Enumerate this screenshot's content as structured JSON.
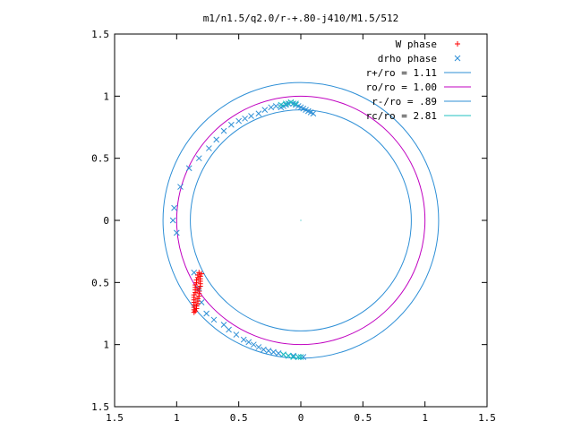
{
  "chart_data": {
    "type": "scatter",
    "title": "m1/n1.5/q2.0/r-+.80-j410/M1.5/512",
    "xlim": [
      -1.5,
      1.5
    ],
    "ylim": [
      -1.5,
      1.5
    ],
    "x_ticks": [
      -1.5,
      -1,
      -0.5,
      0,
      0.5,
      1,
      1.5
    ],
    "x_tick_labels": [
      "1.5",
      "1",
      "0.5",
      "0",
      "0.5",
      "1",
      "1.5"
    ],
    "y_ticks": [
      1.5,
      1,
      0.5,
      0,
      -0.5,
      -1,
      -1.5
    ],
    "y_tick_labels": [
      "1.5",
      "1",
      "0.5",
      "0",
      "0.5",
      "1",
      "1.5"
    ],
    "grid": false,
    "legend_position": "top-right",
    "legend": [
      {
        "label": "W phase",
        "color": "#ff0000",
        "marker": "+"
      },
      {
        "label": "drho phase",
        "color": "#2e8fd6",
        "marker": "x"
      },
      {
        "label": "r+/ro = 1.11",
        "color": "#2e8fd6",
        "marker": "line"
      },
      {
        "label": "ro/ro = 1.00",
        "color": "#c000c0",
        "marker": "line"
      },
      {
        "label": "r-/ro = .89",
        "color": "#2e8fd6",
        "marker": "line"
      },
      {
        "label": "rc/ro = 2.81",
        "color": "#20c0c0",
        "marker": "line"
      }
    ],
    "circles": [
      {
        "name": "r+/ro = 1.11",
        "radius": 1.11,
        "color": "#2e8fd6"
      },
      {
        "name": "ro/ro = 1.00",
        "radius": 1.0,
        "color": "#c000c0"
      },
      {
        "name": "r-/ro = .89",
        "radius": 0.89,
        "color": "#2e8fd6"
      },
      {
        "name": "rc/ro = 2.81",
        "radius": 2.81,
        "color": "#20c0c0"
      }
    ],
    "series": [
      {
        "name": "W phase",
        "color": "#ff0000",
        "marker": "+",
        "points": [
          [
            -0.82,
            -0.42
          ],
          [
            -0.83,
            -0.44
          ],
          [
            -0.83,
            -0.46
          ],
          [
            -0.84,
            -0.48
          ],
          [
            -0.84,
            -0.5
          ],
          [
            -0.85,
            -0.52
          ],
          [
            -0.85,
            -0.54
          ],
          [
            -0.85,
            -0.56
          ],
          [
            -0.85,
            -0.58
          ],
          [
            -0.86,
            -0.6
          ],
          [
            -0.86,
            -0.62
          ],
          [
            -0.86,
            -0.64
          ],
          [
            -0.86,
            -0.66
          ],
          [
            -0.86,
            -0.68
          ],
          [
            -0.86,
            -0.7
          ],
          [
            -0.86,
            -0.72
          ],
          [
            -0.86,
            -0.74
          ],
          [
            -0.85,
            -0.73
          ],
          [
            -0.84,
            -0.71
          ],
          [
            -0.84,
            -0.69
          ],
          [
            -0.83,
            -0.67
          ],
          [
            -0.83,
            -0.65
          ],
          [
            -0.83,
            -0.63
          ],
          [
            -0.82,
            -0.61
          ],
          [
            -0.82,
            -0.59
          ],
          [
            -0.82,
            -0.57
          ],
          [
            -0.82,
            -0.55
          ],
          [
            -0.81,
            -0.53
          ],
          [
            -0.81,
            -0.51
          ],
          [
            -0.81,
            -0.49
          ],
          [
            -0.81,
            -0.47
          ],
          [
            -0.81,
            -0.45
          ],
          [
            -0.8,
            -0.43
          ]
        ]
      },
      {
        "name": "drho phase",
        "color": "#2e8fd6",
        "marker": "x",
        "points": [
          [
            0.1,
            0.86
          ],
          [
            0.08,
            0.87
          ],
          [
            0.06,
            0.88
          ],
          [
            0.04,
            0.89
          ],
          [
            0.02,
            0.9
          ],
          [
            0.0,
            0.91
          ],
          [
            -0.02,
            0.92
          ],
          [
            -0.04,
            0.93
          ],
          [
            -0.06,
            0.94
          ],
          [
            -0.08,
            0.95
          ],
          [
            -0.1,
            0.94
          ],
          [
            -0.12,
            0.93
          ],
          [
            -0.14,
            0.92
          ],
          [
            -0.16,
            0.91
          ],
          [
            -0.2,
            0.92
          ],
          [
            -0.24,
            0.91
          ],
          [
            -0.29,
            0.89
          ],
          [
            -0.34,
            0.86
          ],
          [
            -0.4,
            0.84
          ],
          [
            -0.45,
            0.82
          ],
          [
            -0.5,
            0.8
          ],
          [
            -0.56,
            0.77
          ],
          [
            -0.62,
            0.72
          ],
          [
            -0.68,
            0.65
          ],
          [
            -0.74,
            0.58
          ],
          [
            -0.82,
            0.5
          ],
          [
            -0.9,
            0.42
          ],
          [
            -0.97,
            0.27
          ],
          [
            -1.02,
            0.1
          ],
          [
            -1.03,
            0.0
          ],
          [
            -1.0,
            -0.1
          ],
          [
            -0.86,
            -0.42
          ],
          [
            -0.82,
            -0.55
          ],
          [
            -0.8,
            -0.66
          ],
          [
            -0.76,
            -0.75
          ],
          [
            -0.7,
            -0.8
          ],
          [
            -0.62,
            -0.84
          ],
          [
            -0.58,
            -0.88
          ],
          [
            -0.52,
            -0.92
          ],
          [
            -0.46,
            -0.96
          ],
          [
            -0.42,
            -0.98
          ],
          [
            -0.38,
            -1.0
          ],
          [
            -0.34,
            -1.02
          ],
          [
            -0.3,
            -1.04
          ],
          [
            -0.26,
            -1.05
          ],
          [
            -0.22,
            -1.06
          ],
          [
            -0.18,
            -1.07
          ],
          [
            -0.14,
            -1.08
          ],
          [
            -0.1,
            -1.09
          ],
          [
            -0.06,
            -1.09
          ],
          [
            -0.02,
            -1.1
          ],
          [
            0.02,
            -1.1
          ]
        ]
      },
      {
        "name": "rc/ro = 2.81",
        "color": "#20c0c0",
        "marker": "x",
        "points": [
          [
            -0.16,
            0.93
          ],
          [
            -0.12,
            0.94
          ],
          [
            -0.08,
            0.95
          ],
          [
            -0.04,
            0.94
          ],
          [
            -0.14,
            -1.08
          ],
          [
            -0.1,
            -1.09
          ],
          [
            -0.06,
            -1.1
          ],
          [
            -0.02,
            -1.1
          ],
          [
            0.0,
            -1.1
          ]
        ]
      }
    ]
  }
}
